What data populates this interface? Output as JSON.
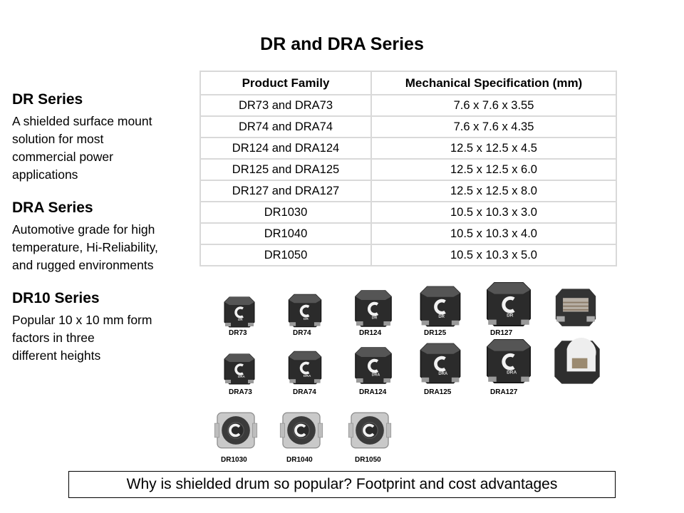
{
  "title": "DR and DRA Series",
  "sections": [
    {
      "title": "DR Series",
      "body": "A shielded surface mount\nsolution for most\ncommercial power\napplications"
    },
    {
      "title": "DRA Series",
      "body": "Automotive grade for high\ntemperature, Hi-Reliability,\nand rugged environments"
    },
    {
      "title": "DR10 Series",
      "body": "Popular 10 x 10 mm form\nfactors in three\ndifferent heights"
    }
  ],
  "table": {
    "headers": [
      "Product Family",
      "Mechanical Specification (mm)"
    ],
    "rows": [
      [
        "DR73 and DRA73",
        "7.6 x 7.6 x 3.55"
      ],
      [
        "DR74 and DRA74",
        "7.6 x 7.6 x 4.35"
      ],
      [
        "DR124 and DRA124",
        "12.5 x 12.5 x 4.5"
      ],
      [
        "DR125 and DRA125",
        "12.5 x 12.5 x 6.0"
      ],
      [
        "DR127 and DRA127",
        "12.5 x 12.5 x 8.0"
      ],
      [
        "DR1030",
        "10.5 x 10.3 x 3.0"
      ],
      [
        "DR1040",
        "10.5 x 10.3 x 4.0"
      ],
      [
        "DR1050",
        "10.5 x 10.3 x 5.0"
      ]
    ]
  },
  "parts": {
    "row1": [
      "DR73",
      "DR74",
      "DR124",
      "DR125",
      "DR127"
    ],
    "row2": [
      "DRA73",
      "DRA74",
      "DRA124",
      "DRA125",
      "DRA127"
    ],
    "row3": [
      "DR1030",
      "DR1040",
      "DR1050"
    ],
    "marking_dr": "DR",
    "marking_dra": "DRA"
  },
  "footer": "Why is shielded drum so popular? Footprint and cost advantages"
}
